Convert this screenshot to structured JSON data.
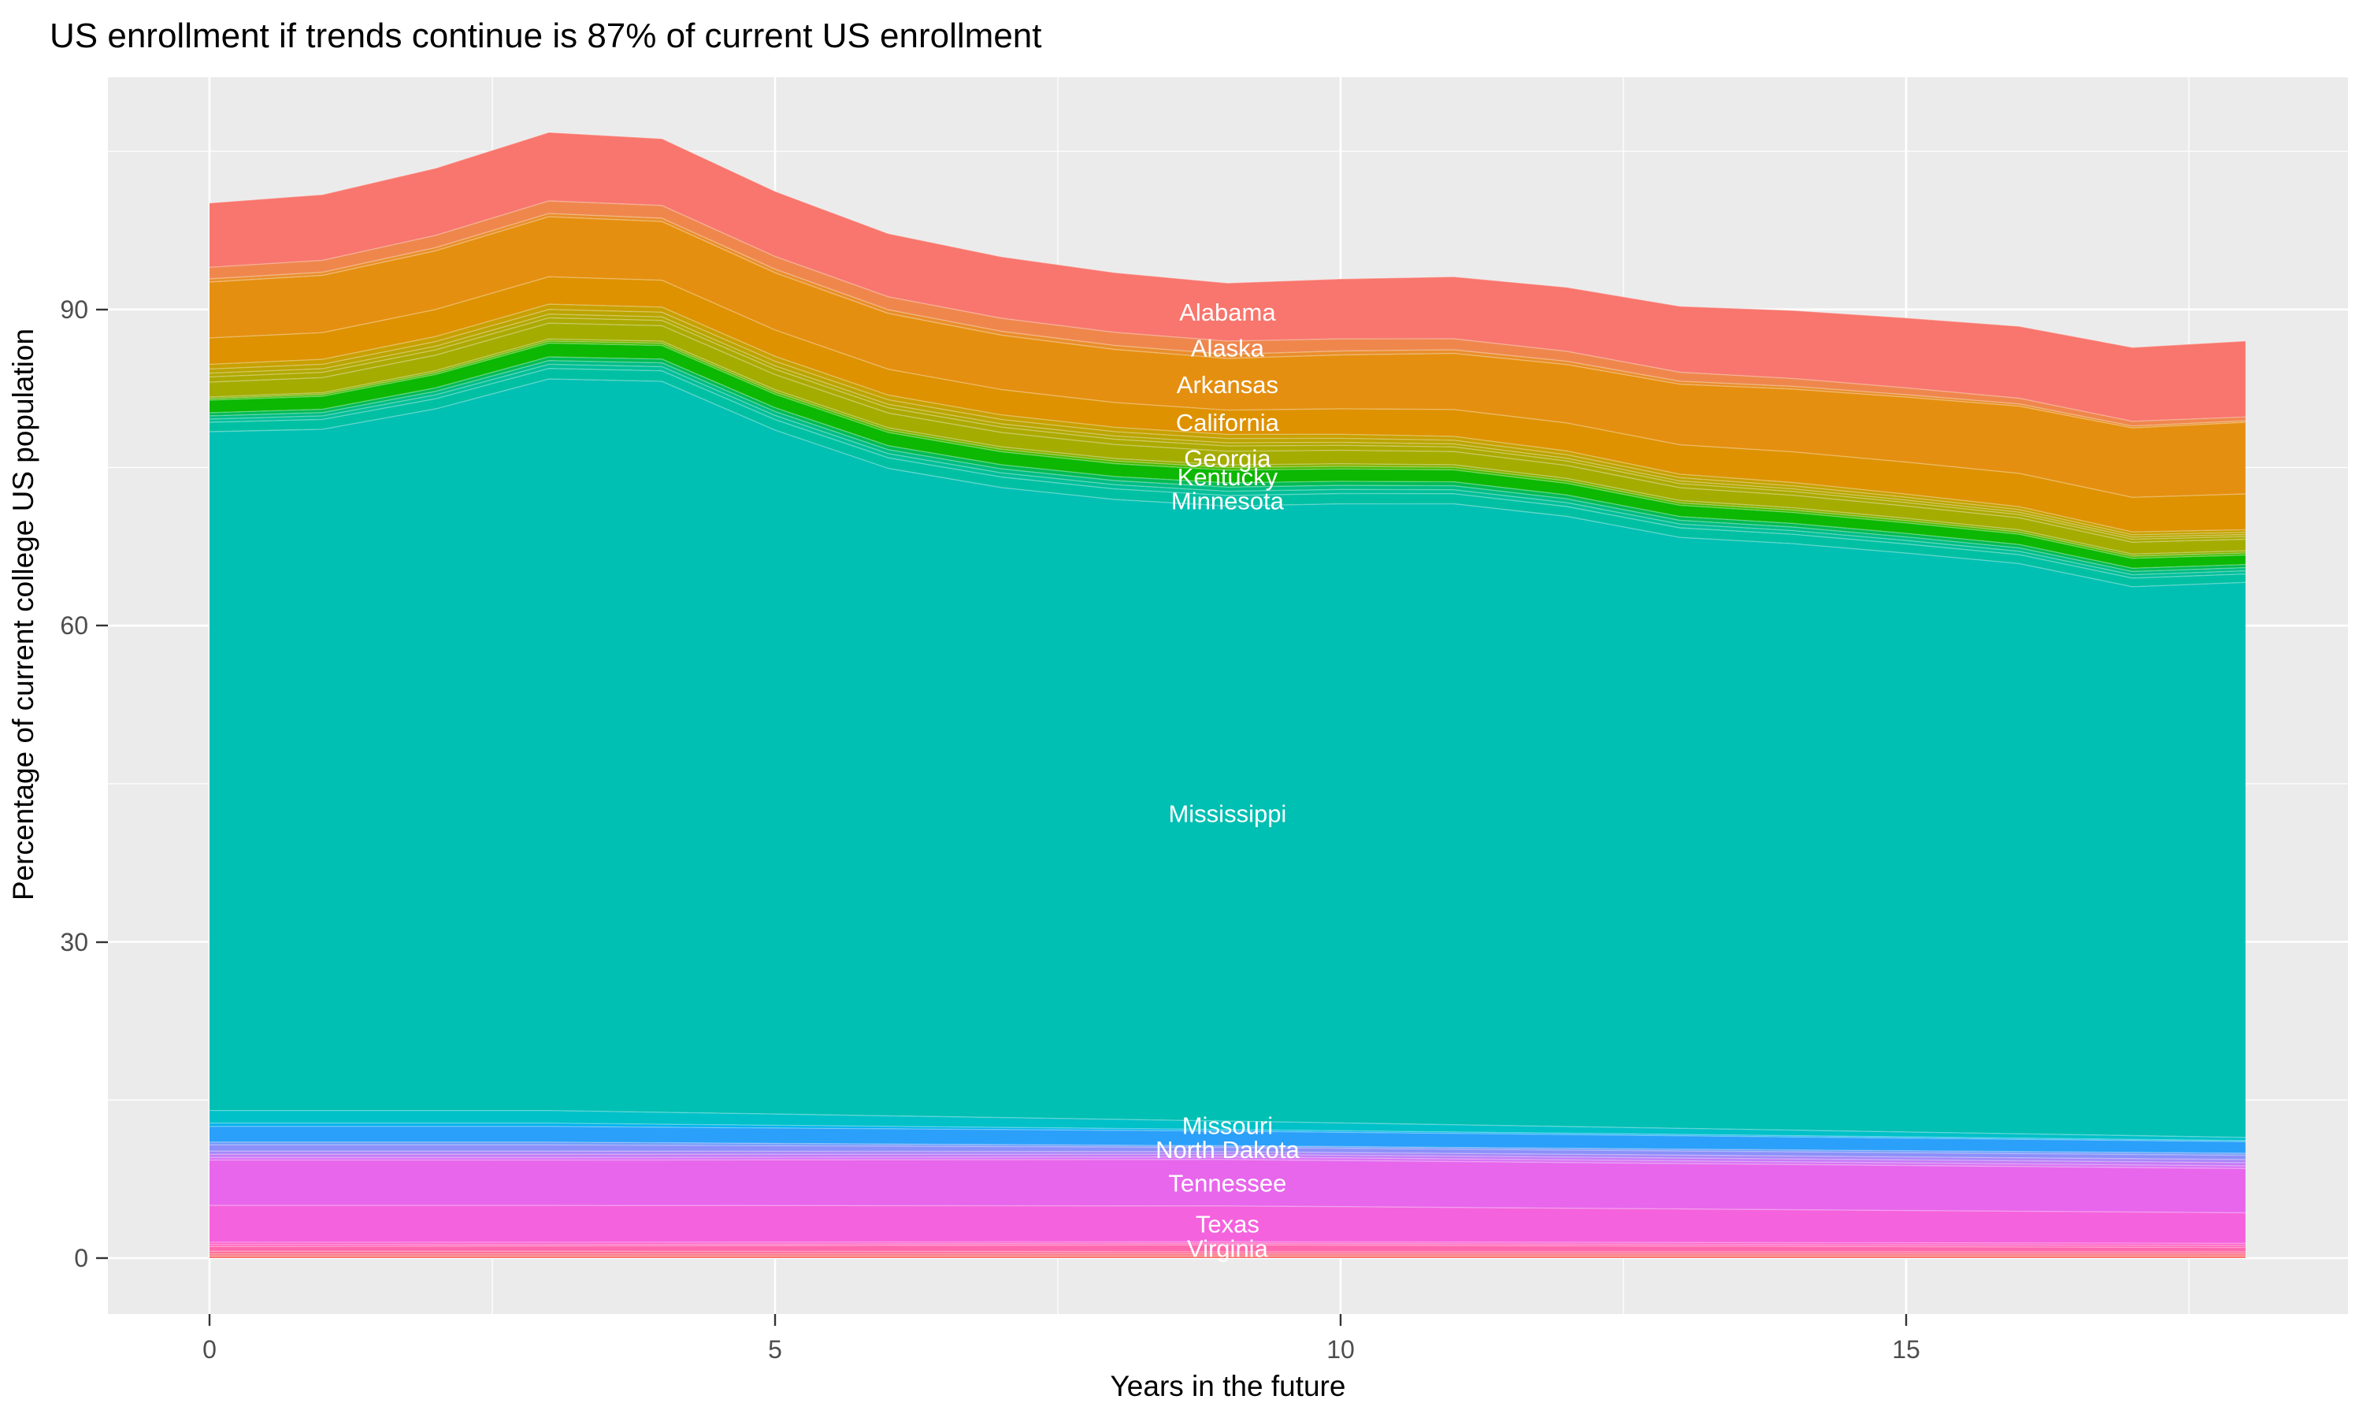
{
  "title": "US enrollment if trends continue is 87% of current US enrollment",
  "axes": {
    "x_label": "Years in the future",
    "y_label": "Percentage of current college US population",
    "x_ticks": [
      "0",
      "5",
      "10",
      "15"
    ],
    "y_ticks": [
      "0",
      "30",
      "60",
      "90"
    ]
  },
  "colors": {
    "panel_bg": "#EBEBEB",
    "grid": "#FFFFFF",
    "tick_text": "#4D4D4D",
    "tick_mark": "#333333",
    "title_text": "#000000",
    "band_label": "#FFFFFF"
  },
  "chart_data": {
    "type": "area",
    "stacked": true,
    "title": "US enrollment if trends continue is 87% of current US enrollment",
    "xlabel": "Years in the future",
    "ylabel": "Percentage of current college US population",
    "x": [
      0,
      1,
      2,
      3,
      4,
      5,
      6,
      7,
      8,
      9,
      10,
      11,
      12,
      13,
      14,
      15,
      16,
      17,
      18
    ],
    "totals": [
      100.1,
      100.9,
      103.4,
      106.8,
      106.2,
      101.2,
      97.2,
      95.0,
      93.5,
      92.5,
      92.9,
      93.1,
      92.1,
      90.3,
      89.9,
      89.2,
      88.4,
      86.4,
      87.0
    ],
    "keyframe_x": [
      0,
      3,
      9,
      18
    ],
    "label_x": 9,
    "x_tick_values": [
      0,
      5,
      10,
      15
    ],
    "x_minor_values": [
      2.5,
      7.5,
      12.5,
      17.5
    ],
    "y_tick_values": [
      0,
      30,
      60,
      90
    ],
    "y_minor_values": [
      15,
      45,
      75,
      105
    ],
    "ylim": [
      0,
      106.8
    ],
    "legend": "none",
    "series": [
      {
        "name": "Alabama",
        "labeled": true,
        "color": "#F8766D",
        "values": [
          6.1,
          6.5,
          5.5,
          7.2
        ]
      },
      {
        "name": "Alaska",
        "labeled": true,
        "color": "#EF874D",
        "values": [
          1.1,
          1.2,
          1.25,
          0.35
        ]
      },
      {
        "name": "unlabeled-1",
        "labeled": false,
        "color": "#E98E2B",
        "values": [
          0.3,
          0.3,
          0.4,
          0.15
        ]
      },
      {
        "name": "Arkansas",
        "labeled": true,
        "color": "#E58F10",
        "values": [
          5.3,
          5.7,
          4.9,
          6.8
        ]
      },
      {
        "name": "California",
        "labeled": true,
        "color": "#DE9200",
        "values": [
          2.5,
          2.6,
          2.3,
          3.4
        ]
      },
      {
        "name": "unlabeled-2",
        "labeled": false,
        "color": "#C9A000",
        "values": [
          0.45,
          0.5,
          0.4,
          0.25
        ]
      },
      {
        "name": "unlabeled-3",
        "labeled": false,
        "color": "#BCA400",
        "values": [
          0.4,
          0.45,
          0.4,
          0.2
        ]
      },
      {
        "name": "unlabeled-4",
        "labeled": false,
        "color": "#B3A800",
        "values": [
          0.35,
          0.35,
          0.3,
          0.2
        ]
      },
      {
        "name": "unlabeled-5",
        "labeled": false,
        "color": "#ACAA00",
        "values": [
          0.5,
          0.5,
          0.5,
          0.25
        ]
      },
      {
        "name": "Georgia",
        "labeled": true,
        "color": "#A5AC00",
        "values": [
          1.4,
          1.5,
          1.3,
          1.1
        ]
      },
      {
        "name": "unlabeled-6",
        "labeled": false,
        "color": "#8AB000",
        "values": [
          0.15,
          0.2,
          0.25,
          0.2
        ]
      },
      {
        "name": "unlabeled-7",
        "labeled": false,
        "color": "#45BB00",
        "values": [
          0.15,
          0.2,
          0.25,
          0.2
        ]
      },
      {
        "name": "Kentucky",
        "labeled": true,
        "color": "#0CB802",
        "values": [
          1.2,
          1.3,
          1.2,
          0.9
        ]
      },
      {
        "name": "unlabeled-8",
        "labeled": false,
        "color": "#00BB54",
        "values": [
          0.3,
          0.35,
          0.4,
          0.3
        ]
      },
      {
        "name": "unlabeled-9",
        "labeled": false,
        "color": "#00BD85",
        "values": [
          0.3,
          0.35,
          0.4,
          0.3
        ]
      },
      {
        "name": "unlabeled-10",
        "labeled": false,
        "color": "#00BF9A",
        "values": [
          0.3,
          0.4,
          0.4,
          0.3
        ]
      },
      {
        "name": "Minnesota",
        "labeled": true,
        "color": "#00C0A4",
        "values": [
          0.9,
          1.0,
          1.0,
          0.8
        ]
      },
      {
        "name": "Mississippi",
        "labeled": true,
        "color": "#00BFB3",
        "residual": true,
        "values": [
          64.6,
          68.9,
          57.8,
          52.4
        ]
      },
      {
        "name": "Missouri",
        "labeled": true,
        "color": "#00C0C8",
        "values": [
          1.2,
          1.2,
          0.8,
          0.3
        ]
      },
      {
        "name": "unlabeled-11",
        "labeled": false,
        "color": "#00B2EE",
        "values": [
          0.3,
          0.3,
          0.15,
          0.1
        ]
      },
      {
        "name": "unlabeled-12",
        "labeled": false,
        "color": "#2AA0FA",
        "values": [
          1.5,
          1.5,
          1.4,
          1.1
        ]
      },
      {
        "name": "unlabeled-13",
        "labeled": false,
        "color": "#6E9AFA",
        "values": [
          0.25,
          0.25,
          0.15,
          0.2
        ]
      },
      {
        "name": "North Dakota",
        "labeled": true,
        "color": "#8C90F9",
        "values": [
          0.6,
          0.6,
          0.4,
          0.4
        ]
      },
      {
        "name": "unlabeled-14",
        "labeled": false,
        "color": "#A986F8",
        "values": [
          0.3,
          0.3,
          0.25,
          0.3
        ]
      },
      {
        "name": "unlabeled-15",
        "labeled": false,
        "color": "#C47BF6",
        "values": [
          0.3,
          0.3,
          0.25,
          0.3
        ]
      },
      {
        "name": "unlabeled-16",
        "labeled": false,
        "color": "#D973F3",
        "values": [
          0.25,
          0.25,
          0.25,
          0.25
        ]
      },
      {
        "name": "Tennessee",
        "labeled": true,
        "color": "#E766EC",
        "values": [
          4.3,
          4.3,
          4.4,
          4.2
        ]
      },
      {
        "name": "Texas",
        "labeled": true,
        "color": "#F562DD",
        "values": [
          3.5,
          3.5,
          3.4,
          2.9
        ]
      },
      {
        "name": "unlabeled-17",
        "labeled": false,
        "color": "#FD60CB",
        "values": [
          0.2,
          0.2,
          0.15,
          0.2
        ]
      },
      {
        "name": "unlabeled-18",
        "labeled": false,
        "color": "#FF64BC",
        "values": [
          0.2,
          0.15,
          0.15,
          0.2
        ]
      },
      {
        "name": "Virginia",
        "labeled": true,
        "color": "#FF68AD",
        "values": [
          0.45,
          0.5,
          0.65,
          0.4
        ]
      },
      {
        "name": "unlabeled-19",
        "labeled": false,
        "color": "#FE6D96",
        "values": [
          0.25,
          0.25,
          0.2,
          0.2
        ]
      },
      {
        "name": "unlabeled-20",
        "labeled": false,
        "color": "#FC7180",
        "values": [
          0.2,
          0.2,
          0.2,
          0.2
        ]
      },
      {
        "name": "unlabeled-21",
        "labeled": false,
        "color": "#FA7571",
        "values": [
          0.2,
          0.2,
          0.2,
          0.2
        ]
      }
    ]
  }
}
